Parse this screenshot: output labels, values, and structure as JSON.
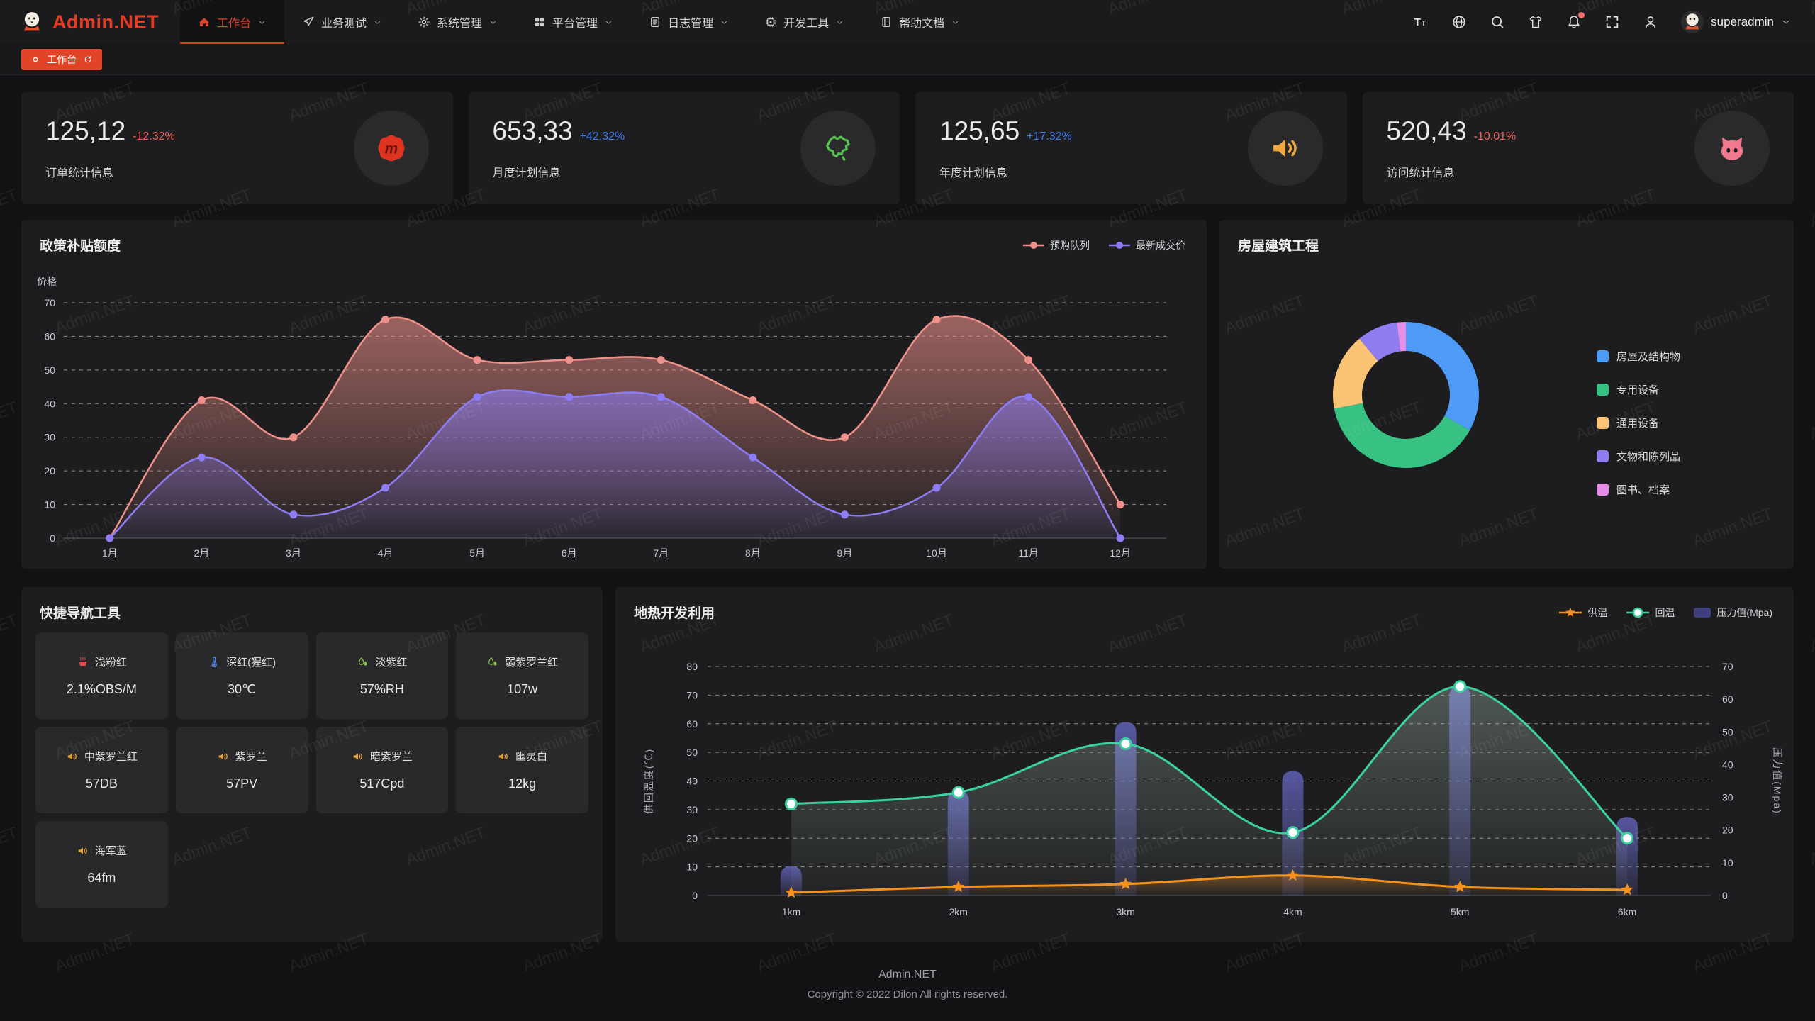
{
  "watermark": {
    "text": "Admin.NET"
  },
  "header": {
    "logo_text": "Admin.NET",
    "menu": [
      {
        "label": "工作台",
        "icon": "home",
        "active": true
      },
      {
        "label": "业务测试",
        "icon": "send",
        "active": false
      },
      {
        "label": "系统管理",
        "icon": "gear",
        "active": false
      },
      {
        "label": "平台管理",
        "icon": "grid",
        "active": false
      },
      {
        "label": "日志管理",
        "icon": "document",
        "active": false
      },
      {
        "label": "开发工具",
        "icon": "chip",
        "active": false
      },
      {
        "label": "帮助文档",
        "icon": "book",
        "active": false
      }
    ],
    "actions": [
      {
        "name": "font-size",
        "icon": "fontsize",
        "badge": false
      },
      {
        "name": "language",
        "icon": "language",
        "badge": false
      },
      {
        "name": "search",
        "icon": "search",
        "badge": false
      },
      {
        "name": "theme",
        "icon": "shirt",
        "badge": false
      },
      {
        "name": "notifications",
        "icon": "bell",
        "badge": true
      },
      {
        "name": "fullscreen",
        "icon": "fullscreen",
        "badge": false
      },
      {
        "name": "profile",
        "icon": "user",
        "badge": false
      }
    ],
    "badge_color": "#f16a64",
    "username": "superadmin"
  },
  "tabbar": {
    "tabs": [
      {
        "label": "工作台",
        "active": true
      }
    ]
  },
  "accent_color": "#e04326",
  "stats": [
    {
      "value": "125,12",
      "delta": "-12.32%",
      "delta_color": "#f25f5f",
      "label": "订单统计信息",
      "icon": "meetup",
      "icon_color": "#df341f"
    },
    {
      "value": "653,33",
      "delta": "+42.32%",
      "delta_color": "#3b7ef8",
      "label": "月度计划信息",
      "icon": "chinamap",
      "icon_color": "#55c14f"
    },
    {
      "value": "125,65",
      "delta": "+17.32%",
      "delta_color": "#3b7ef8",
      "label": "年度计划信息",
      "icon": "speaker",
      "icon_color": "#f2a73e"
    },
    {
      "value": "520,43",
      "delta": "-10.01%",
      "delta_color": "#f25f5f",
      "label": "访问统计信息",
      "icon": "cat",
      "icon_color": "#f0798d"
    }
  ],
  "chart_data": [
    {
      "id": "subsidy",
      "type": "area",
      "title": "政策补贴额度",
      "ylabel": "价格",
      "ylim": [
        0,
        70
      ],
      "yticks": [
        0,
        10,
        20,
        30,
        40,
        50,
        60,
        70
      ],
      "categories": [
        "1月",
        "2月",
        "3月",
        "4月",
        "5月",
        "6月",
        "7月",
        "8月",
        "9月",
        "10月",
        "11月",
        "12月"
      ],
      "grid": "dashed",
      "legend_position": "top-right",
      "series": [
        {
          "name": "预购队列",
          "color": "#f0928c",
          "values": [
            0,
            41,
            30,
            65,
            53,
            53,
            53,
            41,
            30,
            65,
            53,
            10
          ]
        },
        {
          "name": "最新成交价",
          "color": "#8d7cf4",
          "values": [
            0,
            24,
            7,
            15,
            42,
            42,
            42,
            24,
            7,
            15,
            42,
            0
          ]
        }
      ]
    },
    {
      "id": "housing",
      "type": "pie",
      "title": "房屋建筑工程",
      "legend_position": "right",
      "slices": [
        {
          "name": "房屋及结构物",
          "value": 33,
          "color": "#4e9af7"
        },
        {
          "name": "专用设备",
          "value": 39,
          "color": "#37c182"
        },
        {
          "name": "通用设备",
          "value": 17,
          "color": "#fbc374"
        },
        {
          "name": "文物和陈列品",
          "value": 9,
          "color": "#8e7cf0"
        },
        {
          "name": "图书、档案",
          "value": 2,
          "color": "#e58de5"
        }
      ]
    },
    {
      "id": "geothermal",
      "type": "combo",
      "title": "地热开发利用",
      "categories": [
        "1km",
        "2km",
        "3km",
        "4km",
        "5km",
        "6km"
      ],
      "ylabel_left": "供回温度(℃)",
      "ylim_left": [
        0,
        80
      ],
      "yticks_left": [
        0,
        10,
        20,
        30,
        40,
        50,
        60,
        70,
        80
      ],
      "ylabel_right": "压力值(Mpa)",
      "ylim_right": [
        0,
        70
      ],
      "yticks_right": [
        0,
        10,
        20,
        30,
        40,
        50,
        60,
        70
      ],
      "grid": "dashed",
      "legend_position": "top-right",
      "series": [
        {
          "name": "供温",
          "type": "line",
          "marker": "star",
          "axis": "left",
          "color": "#f5921e",
          "values": [
            1,
            3,
            4,
            7,
            3,
            2
          ]
        },
        {
          "name": "回温",
          "type": "line",
          "marker": "circle",
          "axis": "left",
          "color": "#3bd2a2",
          "values": [
            32,
            36,
            53,
            22,
            73,
            20
          ]
        },
        {
          "name": "压力值(Mpa)",
          "type": "bar",
          "axis": "right",
          "color": "#3f3f7e",
          "values": [
            9,
            32,
            53,
            38,
            64,
            24
          ]
        }
      ]
    }
  ],
  "quick_nav": {
    "title": "快捷导航工具",
    "items": [
      {
        "label": "浅粉红",
        "value": "2.1%OBS/M",
        "icon": "hotspring",
        "icon_color": "#e05050"
      },
      {
        "label": "深红(猩红)",
        "value": "30℃",
        "icon": "thermometer",
        "icon_color": "#5588ee"
      },
      {
        "label": "淡紫红",
        "value": "57%RH",
        "icon": "humidity",
        "icon_color": "#8bc34a"
      },
      {
        "label": "弱紫罗兰红",
        "value": "107w",
        "icon": "humidity",
        "icon_color": "#8bc34a"
      },
      {
        "label": "中紫罗兰红",
        "value": "57DB",
        "icon": "speaker",
        "icon_color": "#e8a23c"
      },
      {
        "label": "紫罗兰",
        "value": "57PV",
        "icon": "speaker",
        "icon_color": "#e8a23c"
      },
      {
        "label": "暗紫罗兰",
        "value": "517Cpd",
        "icon": "speaker",
        "icon_color": "#e8a23c"
      },
      {
        "label": "幽灵白",
        "value": "12kg",
        "icon": "speaker",
        "icon_color": "#e8a23c"
      },
      {
        "label": "海军蓝",
        "value": "64fm",
        "icon": "speaker",
        "icon_color": "#e8a23c"
      }
    ]
  },
  "footer": {
    "line1": "Admin.NET",
    "line2": "Copyright © 2022 Dilon All rights reserved."
  }
}
